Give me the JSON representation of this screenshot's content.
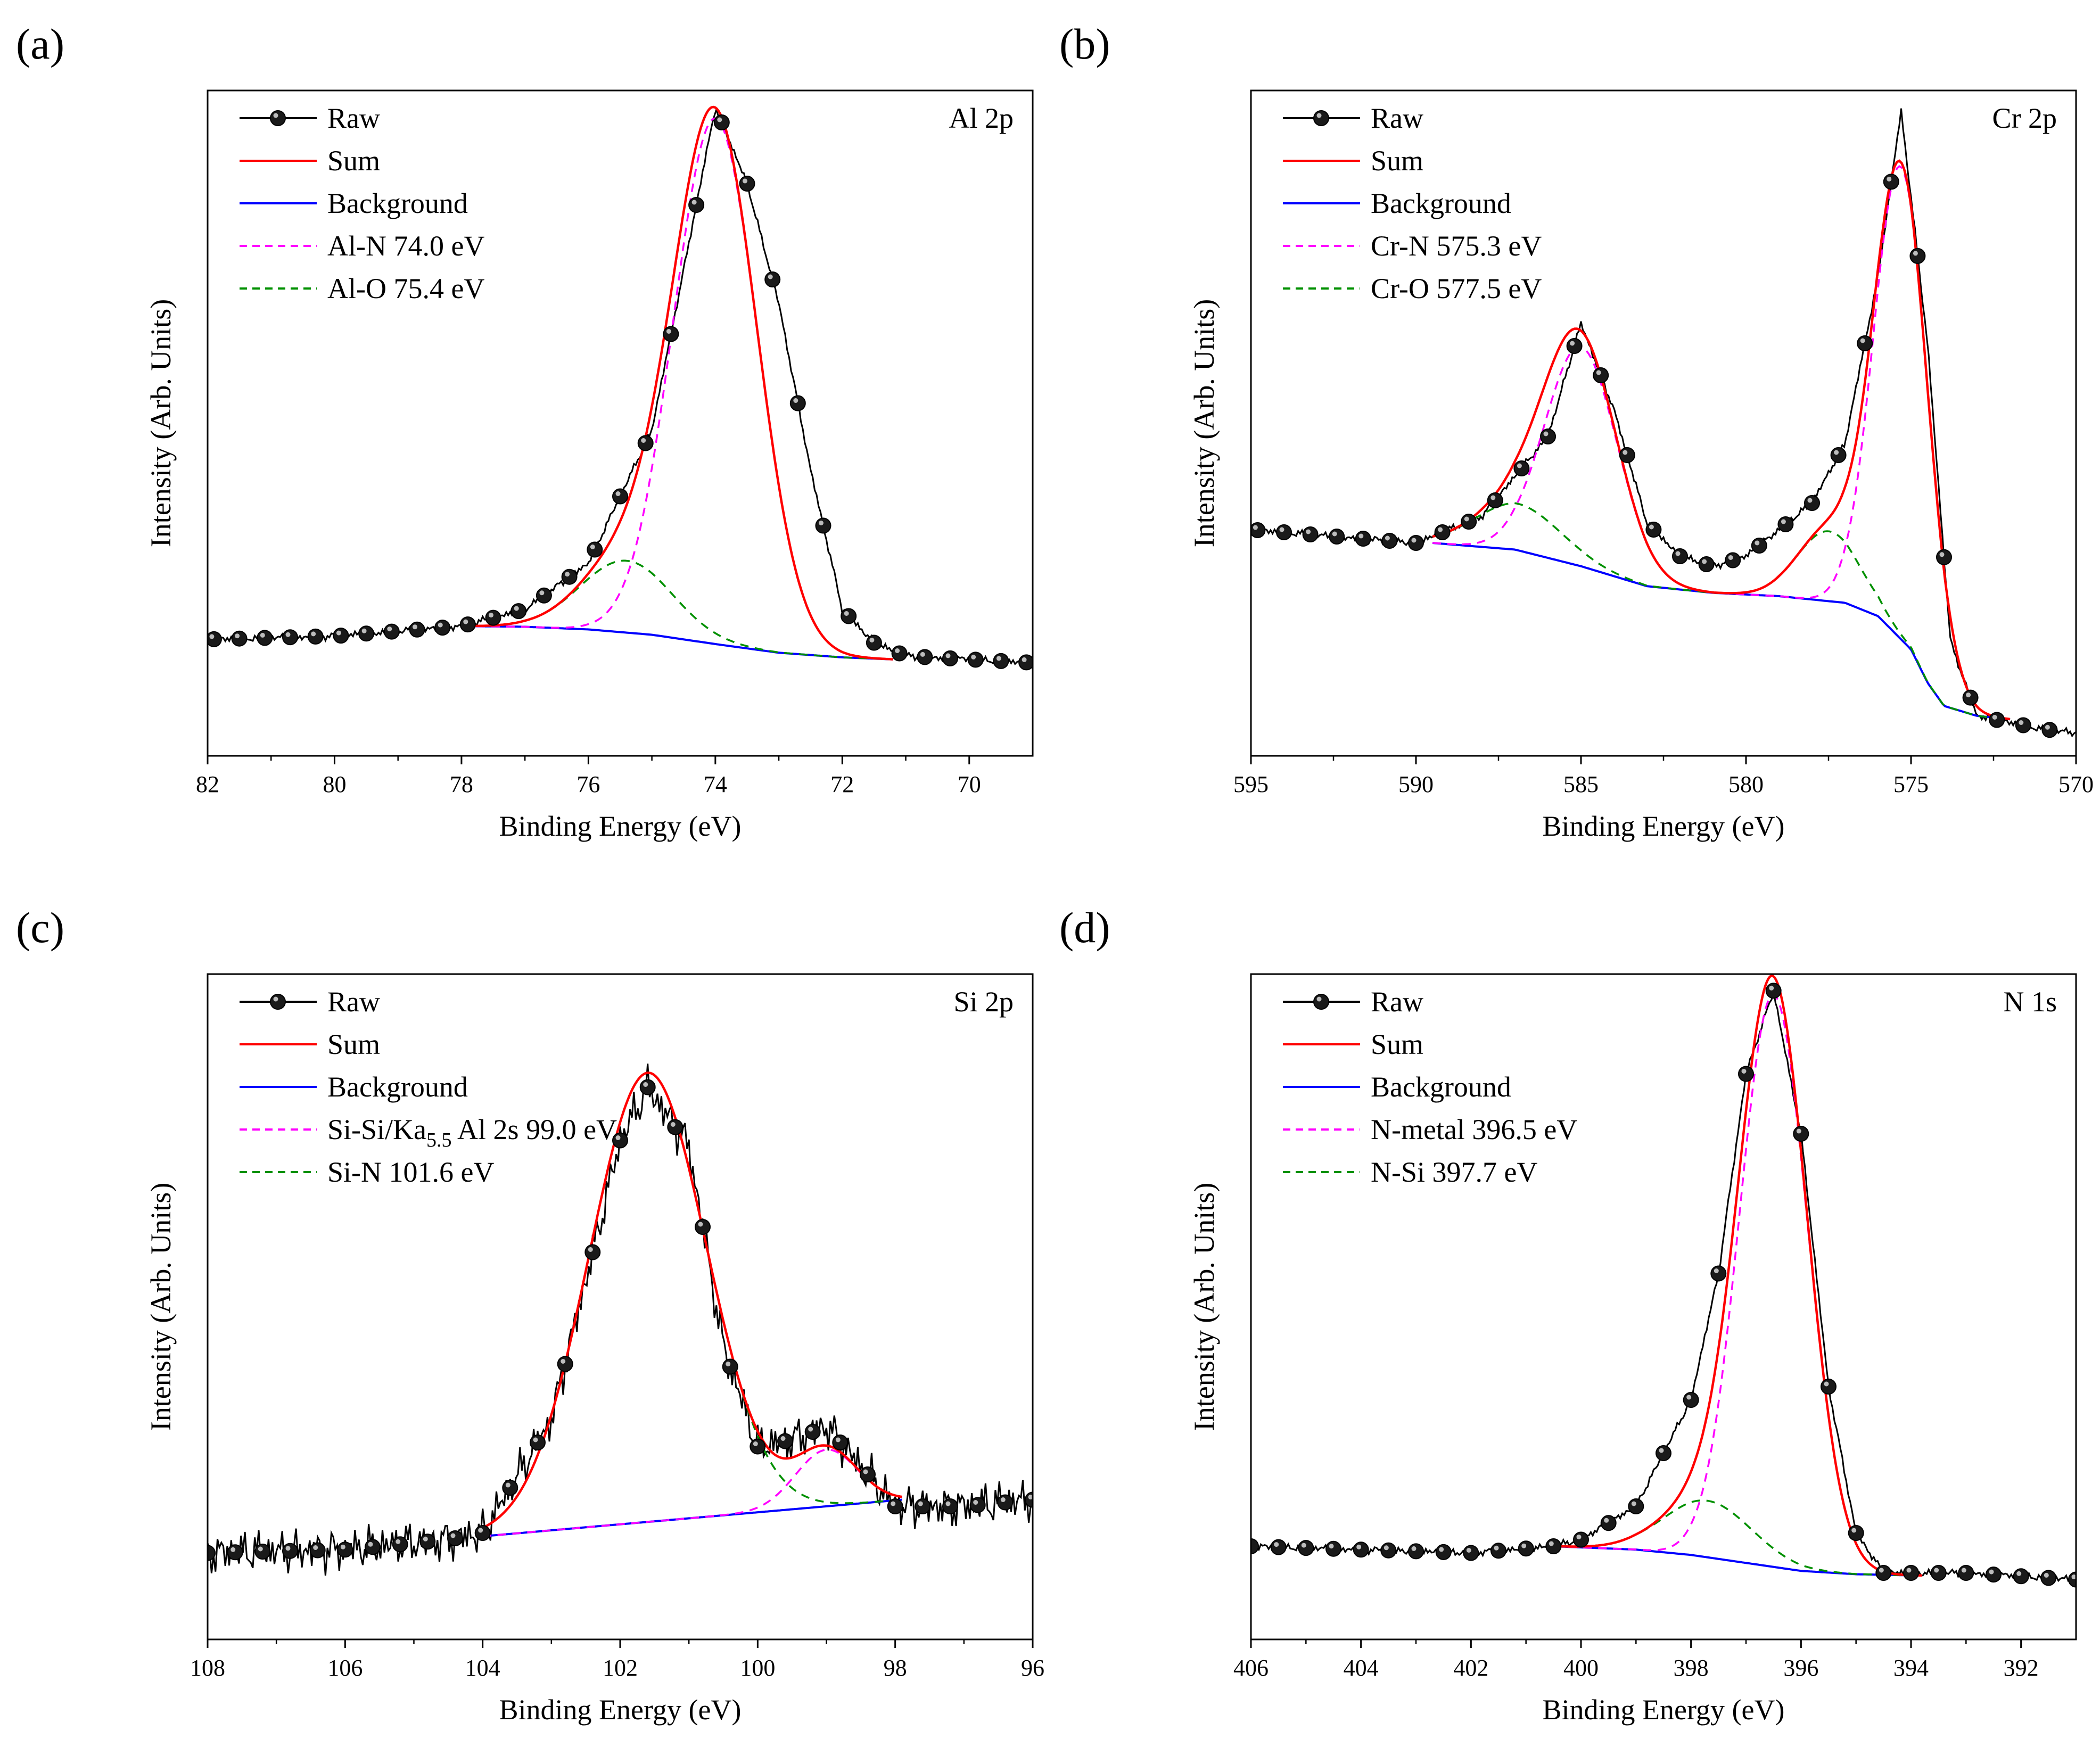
{
  "colors": {
    "raw": "#000000",
    "sum": "#ff0000",
    "background": "#0000ff",
    "peak1": "#ff00ff",
    "peak2": "#009000"
  },
  "chart_data": [
    {
      "type": "line",
      "panel_label": "(a)",
      "title": "Al 2p",
      "xlabel": "Binding Energy (eV)",
      "ylabel": "Intensity (Arb. Units)",
      "xlim": [
        82,
        69
      ],
      "xticks": [
        82,
        80,
        78,
        76,
        74,
        72,
        70
      ],
      "ylim": [
        0,
        1
      ],
      "legend": [
        "Raw",
        "Sum",
        "Background",
        "Al-N 74.0 eV",
        "Al-O 75.4 eV"
      ],
      "legend_position": "top-left",
      "background_range": [
        78.0,
        71.2
      ],
      "noise_amplitude": 0.003,
      "raw_points_x": [
        81.9,
        81.5,
        81.1,
        80.7,
        80.3,
        79.9,
        79.5,
        79.1,
        78.7,
        78.3,
        77.9,
        77.5,
        77.1,
        76.7,
        76.3,
        75.9,
        75.5,
        75.1,
        74.7,
        74.3,
        73.9,
        73.5,
        73.1,
        72.7,
        72.3,
        71.9,
        71.5,
        71.1,
        70.7,
        70.3,
        69.9,
        69.5,
        69.1
      ],
      "series": [
        {
          "name": "Raw",
          "role": "raw",
          "x": [
            82,
            80,
            78,
            77,
            76,
            75,
            74.5,
            74.0,
            73.5,
            73,
            72.5,
            72,
            71.5,
            71,
            70,
            69
          ],
          "y": [
            0.175,
            0.18,
            0.195,
            0.22,
            0.29,
            0.49,
            0.73,
            0.975,
            0.86,
            0.68,
            0.43,
            0.22,
            0.17,
            0.15,
            0.145,
            0.14
          ]
        },
        {
          "name": "Background",
          "role": "background",
          "x": [
            78.0,
            77,
            76,
            75,
            74,
            73,
            72,
            71.2
          ],
          "y": [
            0.195,
            0.194,
            0.19,
            0.182,
            0.168,
            0.155,
            0.148,
            0.145
          ]
        },
        {
          "name": "Al-N",
          "role": "peak1",
          "center": 74.0,
          "height": 0.79,
          "sigma": 0.66
        },
        {
          "name": "Al-O",
          "role": "peak2",
          "center": 75.4,
          "height": 0.108,
          "sigma": 0.72
        }
      ]
    },
    {
      "type": "line",
      "panel_label": "(b)",
      "title": "Cr 2p",
      "xlabel": "Binding Energy (eV)",
      "ylabel": "Intensity (Arb. Units)",
      "xlim": [
        595,
        570
      ],
      "xticks": [
        595,
        590,
        585,
        580,
        575,
        570
      ],
      "ylim": [
        0,
        1
      ],
      "legend": [
        "Raw",
        "Sum",
        "Background",
        "Cr-N 575.3 eV",
        "Cr-O 577.5 eV"
      ],
      "legend_position": "top-left",
      "background_range": [
        589.5,
        572.0
      ],
      "noise_amplitude": 0.003,
      "raw_points_x": [
        594.8,
        594.0,
        593.2,
        592.4,
        591.6,
        590.8,
        590.0,
        589.2,
        588.4,
        587.6,
        586.8,
        586.0,
        585.2,
        584.4,
        583.6,
        582.8,
        582.0,
        581.2,
        580.4,
        579.6,
        578.8,
        578.0,
        577.2,
        576.4,
        575.6,
        574.8,
        574.0,
        573.2,
        572.4,
        571.6,
        570.8
      ],
      "series": [
        {
          "name": "Raw",
          "role": "raw",
          "x": [
            595,
            590,
            588,
            586,
            585,
            584,
            583,
            582,
            581,
            580,
            578,
            577,
            576,
            575.3,
            574.5,
            573.8,
            573,
            572,
            571,
            570
          ],
          "y": [
            0.34,
            0.32,
            0.36,
            0.48,
            0.65,
            0.52,
            0.35,
            0.3,
            0.285,
            0.3,
            0.38,
            0.47,
            0.72,
            0.97,
            0.62,
            0.17,
            0.06,
            0.05,
            0.04,
            0.035
          ]
        },
        {
          "name": "Background",
          "role": "background",
          "x": [
            589.5,
            587,
            585,
            583,
            581,
            579,
            577,
            576,
            575,
            574.5,
            574,
            573,
            572
          ],
          "y": [
            0.32,
            0.31,
            0.285,
            0.255,
            0.245,
            0.24,
            0.23,
            0.21,
            0.16,
            0.11,
            0.075,
            0.06,
            0.055
          ]
        },
        {
          "name": "Cr-N",
          "role": "peak1",
          "centers": [
            575.3,
            585.0
          ],
          "heights": [
            0.71,
            0.33
          ],
          "sigmas": [
            0.82,
            1.1
          ]
        },
        {
          "name": "Cr-O",
          "role": "peak2",
          "centers": [
            577.5,
            586.9
          ],
          "heights": [
            0.105,
            0.07
          ],
          "sigmas": [
            0.95,
            1.3
          ]
        }
      ]
    },
    {
      "type": "line",
      "panel_label": "(c)",
      "title": "Si 2p",
      "xlabel": "Binding Energy (eV)",
      "ylabel": "Intensity (Arb. Units)",
      "xlim": [
        108,
        96
      ],
      "xticks": [
        108,
        106,
        104,
        102,
        100,
        98,
        96
      ],
      "ylim": [
        0,
        1
      ],
      "legend": [
        "Raw",
        "Sum",
        "Background",
        "Si-Si/Ka5.5 Al 2s 99.0 eV",
        "Si-N 101.6 eV"
      ],
      "legend_position": "top-left",
      "background_range": [
        104.0,
        97.9
      ],
      "noise_amplitude": 0.018,
      "raw_points_x": [
        108.0,
        107.6,
        107.2,
        106.8,
        106.4,
        106.0,
        105.6,
        105.2,
        104.8,
        104.4,
        104.0,
        103.6,
        103.2,
        102.8,
        102.4,
        102.0,
        101.6,
        101.2,
        100.8,
        100.4,
        100.0,
        99.6,
        99.2,
        98.8,
        98.4,
        98.0,
        97.6,
        97.2,
        96.8,
        96.4,
        96.0
      ],
      "series": [
        {
          "name": "Raw",
          "role": "raw",
          "x": [
            108,
            106,
            104.5,
            104,
            103,
            102,
            101.6,
            101,
            100.5,
            100,
            99.5,
            99,
            98.5,
            98,
            97,
            96
          ],
          "y": [
            0.13,
            0.135,
            0.15,
            0.16,
            0.33,
            0.75,
            0.83,
            0.74,
            0.44,
            0.29,
            0.3,
            0.32,
            0.26,
            0.2,
            0.2,
            0.21
          ]
        },
        {
          "name": "Background",
          "role": "background",
          "x": [
            104.0,
            97.9
          ],
          "y": [
            0.155,
            0.21
          ]
        },
        {
          "name": "Si-Si/Ka5.5 Al 2s",
          "role": "peak1",
          "center": 99.0,
          "height": 0.085,
          "sigma": 0.45
        },
        {
          "name": "Si-N",
          "role": "peak2",
          "center": 101.6,
          "height": 0.675,
          "sigma": 0.85
        }
      ]
    },
    {
      "type": "line",
      "panel_label": "(d)",
      "title": "N 1s",
      "xlabel": "Binding Energy (eV)",
      "ylabel": "Intensity (Arb. Units)",
      "xlim": [
        406,
        391
      ],
      "xticks": [
        406,
        404,
        402,
        400,
        398,
        396,
        394,
        392
      ],
      "ylim": [
        0,
        1
      ],
      "legend": [
        "Raw",
        "Sum",
        "Background",
        "N-metal 396.5 eV",
        "N-Si 397.7 eV"
      ],
      "legend_position": "top-left",
      "background_range": [
        400.5,
        393.8
      ],
      "noise_amplitude": 0.003,
      "raw_points_x": [
        406.0,
        405.5,
        405.0,
        404.5,
        404.0,
        403.5,
        403.0,
        402.5,
        402.0,
        401.5,
        401.0,
        400.5,
        400.0,
        399.5,
        399.0,
        398.5,
        398.0,
        397.5,
        397.0,
        396.5,
        396.0,
        395.5,
        395.0,
        394.5,
        394.0,
        393.5,
        393.0,
        392.5,
        392.0,
        391.5,
        391.0
      ],
      "series": [
        {
          "name": "Raw",
          "role": "raw",
          "x": [
            406,
            402,
            400.5,
            400,
            399,
            398,
            397.5,
            397,
            396.5,
            396,
            395.5,
            395,
            394.5,
            393,
            391
          ],
          "y": [
            0.14,
            0.13,
            0.14,
            0.15,
            0.2,
            0.36,
            0.55,
            0.85,
            0.975,
            0.76,
            0.38,
            0.16,
            0.1,
            0.1,
            0.09
          ]
        },
        {
          "name": "Background",
          "role": "background",
          "x": [
            400.5,
            399,
            398,
            397,
            396,
            395,
            393.8
          ],
          "y": [
            0.14,
            0.135,
            0.127,
            0.115,
            0.103,
            0.098,
            0.096
          ]
        },
        {
          "name": "N-metal",
          "role": "peak1",
          "center": 396.5,
          "height": 0.86,
          "sigma": 0.62
        },
        {
          "name": "N-Si",
          "role": "peak2",
          "center": 397.7,
          "height": 0.085,
          "sigma": 0.8
        }
      ]
    }
  ]
}
